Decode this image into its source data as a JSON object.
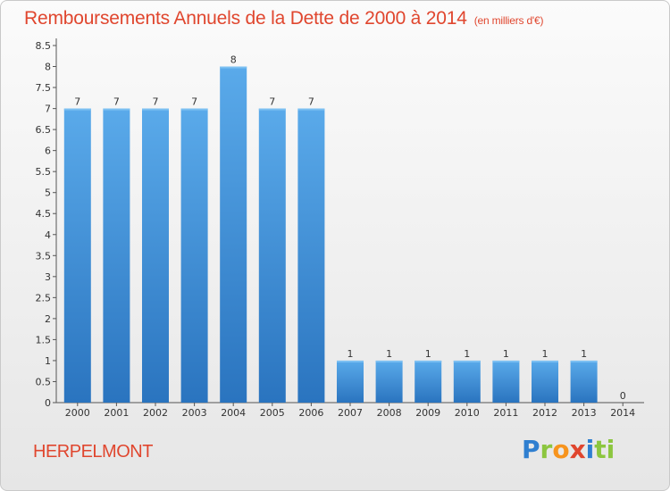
{
  "title": "Remboursements Annuels de la Dette de 2000 à 2014",
  "unit": "(en milliers d'€)",
  "place": "HERPELMONT",
  "brand_letters": [
    "P",
    "r",
    "o",
    "x",
    "i",
    "ti"
  ],
  "colors": {
    "bar": "#3f8fd8",
    "bar_dark": "#2a74bf",
    "title": "#e0462e"
  },
  "chart_data": {
    "type": "bar",
    "categories": [
      "2000",
      "2001",
      "2002",
      "2003",
      "2004",
      "2005",
      "2006",
      "2007",
      "2008",
      "2009",
      "2010",
      "2011",
      "2012",
      "2013",
      "2014"
    ],
    "values": [
      7,
      7,
      7,
      7,
      8,
      7,
      7,
      1,
      1,
      1,
      1,
      1,
      1,
      1,
      0
    ],
    "value_labels": [
      "7",
      "7",
      "7",
      "7",
      "8",
      "7",
      "7",
      "1",
      "1",
      "1",
      "1",
      "1",
      "1",
      "1",
      "0"
    ],
    "ylim": [
      0,
      8.5
    ],
    "yticks": [
      0,
      0.5,
      1,
      1.5,
      2,
      2.5,
      3,
      3.5,
      4,
      4.5,
      5,
      5.5,
      6,
      6.5,
      7,
      7.5,
      8,
      8.5
    ],
    "ytick_labels": [
      "0",
      "0.5",
      "1",
      "1.5",
      "2",
      "2.5",
      "3",
      "3.5",
      "4",
      "4.5",
      "5",
      "5.5",
      "6",
      "6.5",
      "7",
      "7.5",
      "8",
      "8.5"
    ],
    "grid": false,
    "xlabel": "",
    "ylabel": ""
  }
}
